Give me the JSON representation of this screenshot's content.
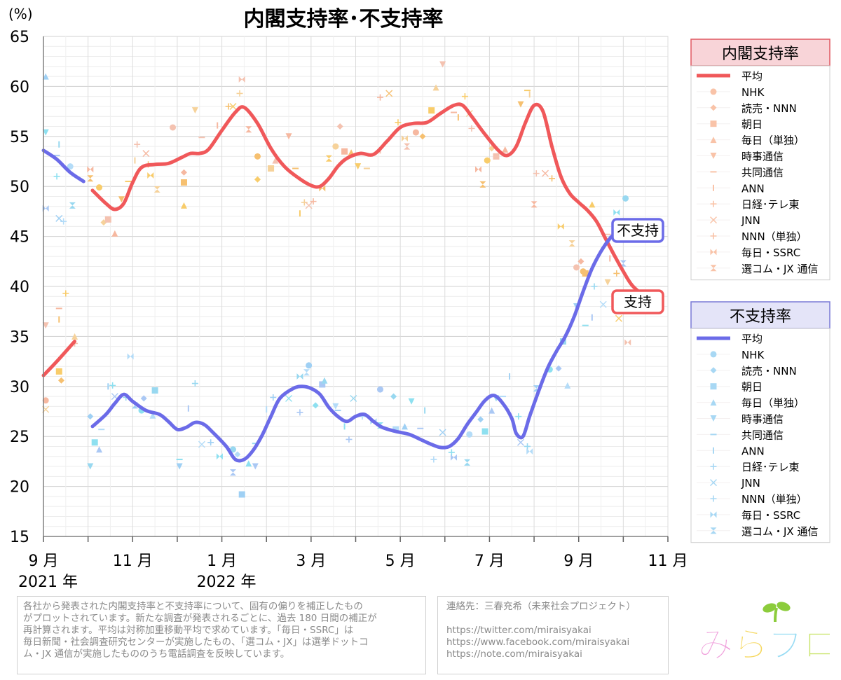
{
  "chart_data": {
    "type": "line",
    "title": "内閣支持率･不支持率",
    "ylabel": "(%)",
    "ylim": [
      15,
      65
    ],
    "yticks": [
      15,
      20,
      25,
      30,
      35,
      40,
      45,
      50,
      55,
      60,
      65
    ],
    "xlim_months": [
      0,
      14
    ],
    "xticks": [
      {
        "m": 0,
        "label": "9 月",
        "year": "2021 年"
      },
      {
        "m": 2,
        "label": "11 月",
        "year": ""
      },
      {
        "m": 4,
        "label": "1 月",
        "year": "2022 年"
      },
      {
        "m": 6,
        "label": "3 月",
        "year": ""
      },
      {
        "m": 8,
        "label": "5 月",
        "year": ""
      },
      {
        "m": 10,
        "label": "7 月",
        "year": ""
      },
      {
        "m": 12,
        "label": "9 月",
        "year": ""
      },
      {
        "m": 14,
        "label": "11 月",
        "year": ""
      }
    ],
    "grid": true,
    "series": [
      {
        "name": "支持率 平均",
        "color": "#f0585a",
        "segments": [
          [
            [
              0,
              31.1
            ],
            [
              0.3,
              32.5
            ],
            [
              0.7,
              34.5
            ]
          ],
          [
            [
              1.1,
              49.6
            ],
            [
              1.4,
              48.3
            ],
            [
              1.6,
              47.7
            ],
            [
              1.8,
              48.3
            ],
            [
              2.0,
              50.4
            ],
            [
              2.2,
              51.9
            ],
            [
              2.5,
              52.2
            ],
            [
              2.8,
              52.3
            ],
            [
              3.1,
              52.9
            ],
            [
              3.3,
              53.3
            ],
            [
              3.5,
              53.3
            ],
            [
              3.7,
              53.7
            ],
            [
              4.0,
              55.6
            ],
            [
              4.3,
              57.4
            ],
            [
              4.5,
              57.9
            ],
            [
              4.8,
              56.3
            ],
            [
              5.1,
              53.8
            ],
            [
              5.4,
              52.0
            ],
            [
              5.7,
              50.9
            ],
            [
              6.0,
              50.1
            ],
            [
              6.2,
              50.0
            ],
            [
              6.4,
              50.8
            ],
            [
              6.6,
              52.0
            ],
            [
              6.8,
              52.8
            ],
            [
              7.1,
              53.3
            ],
            [
              7.4,
              53.2
            ],
            [
              7.7,
              54.5
            ],
            [
              8.0,
              55.9
            ],
            [
              8.3,
              56.3
            ],
            [
              8.6,
              56.4
            ],
            [
              8.9,
              57.3
            ],
            [
              9.2,
              58.1
            ],
            [
              9.4,
              58.1
            ],
            [
              9.6,
              57.0
            ],
            [
              9.9,
              55.2
            ],
            [
              10.2,
              53.6
            ],
            [
              10.4,
              53.1
            ],
            [
              10.6,
              54.0
            ],
            [
              10.8,
              56.3
            ],
            [
              11.0,
              58.1
            ],
            [
              11.2,
              57.5
            ],
            [
              11.4,
              54.0
            ],
            [
              11.6,
              51.0
            ],
            [
              11.8,
              49.3
            ],
            [
              12.0,
              48.4
            ],
            [
              12.2,
              47.6
            ],
            [
              12.4,
              46.5
            ],
            [
              12.6,
              44.8
            ],
            [
              12.8,
              43.1
            ],
            [
              13.0,
              41.5
            ],
            [
              13.2,
              40.1
            ],
            [
              13.5,
              38.9
            ]
          ]
        ]
      },
      {
        "name": "不支持率 平均",
        "color": "#6b6be8",
        "segments": [
          [
            [
              0,
              53.6
            ],
            [
              0.3,
              52.7
            ],
            [
              0.6,
              51.4
            ],
            [
              0.9,
              50.5
            ]
          ],
          [
            [
              1.1,
              26.0
            ],
            [
              1.4,
              27.2
            ],
            [
              1.6,
              28.3
            ],
            [
              1.8,
              29.2
            ],
            [
              2.0,
              28.5
            ],
            [
              2.3,
              27.6
            ],
            [
              2.6,
              27.2
            ],
            [
              2.8,
              26.5
            ],
            [
              3.0,
              25.7
            ],
            [
              3.2,
              25.9
            ],
            [
              3.4,
              26.4
            ],
            [
              3.6,
              26.2
            ],
            [
              3.8,
              25.4
            ],
            [
              4.1,
              24.0
            ],
            [
              4.3,
              22.7
            ],
            [
              4.5,
              22.7
            ],
            [
              4.7,
              23.6
            ],
            [
              4.9,
              25.1
            ],
            [
              5.1,
              27.0
            ],
            [
              5.3,
              28.8
            ],
            [
              5.6,
              29.8
            ],
            [
              5.8,
              30.0
            ],
            [
              6.0,
              29.8
            ],
            [
              6.2,
              29.2
            ],
            [
              6.4,
              27.9
            ],
            [
              6.6,
              27.0
            ],
            [
              6.8,
              26.5
            ],
            [
              7.0,
              27.0
            ],
            [
              7.2,
              27.2
            ],
            [
              7.4,
              26.5
            ],
            [
              7.6,
              25.9
            ],
            [
              7.9,
              25.5
            ],
            [
              8.2,
              25.2
            ],
            [
              8.5,
              24.6
            ],
            [
              8.7,
              24.2
            ],
            [
              8.9,
              23.9
            ],
            [
              9.1,
              24.0
            ],
            [
              9.3,
              24.8
            ],
            [
              9.5,
              26.2
            ],
            [
              9.7,
              27.4
            ],
            [
              9.9,
              28.6
            ],
            [
              10.1,
              29.1
            ],
            [
              10.3,
              28.3
            ],
            [
              10.5,
              26.8
            ],
            [
              10.6,
              25.3
            ],
            [
              10.75,
              25.0
            ],
            [
              10.9,
              27.0
            ],
            [
              11.1,
              29.5
            ],
            [
              11.3,
              31.8
            ],
            [
              11.5,
              33.5
            ],
            [
              11.7,
              35.0
            ],
            [
              11.9,
              37.0
            ],
            [
              12.1,
              39.5
            ],
            [
              12.3,
              41.8
            ],
            [
              12.5,
              43.5
            ],
            [
              12.7,
              44.8
            ],
            [
              12.85,
              45.4
            ]
          ]
        ]
      }
    ],
    "scatter_support": [
      [
        0.05,
        28.6
      ],
      [
        0.4,
        30.6
      ],
      [
        0.35,
        31.5
      ],
      [
        0.7,
        35.0
      ],
      [
        0.05,
        36.1
      ],
      [
        0.35,
        37.8
      ],
      [
        0.35,
        36.7
      ],
      [
        0.5,
        39.3
      ],
      [
        0.05,
        27.7
      ],
      [
        0.7,
        34.3
      ],
      [
        1.05,
        51.7
      ],
      [
        1.05,
        50.8
      ],
      [
        1.25,
        49.9
      ],
      [
        1.35,
        46.4
      ],
      [
        1.45,
        46.7
      ],
      [
        1.6,
        45.3
      ],
      [
        1.75,
        48.7
      ],
      [
        1.9,
        50.5
      ],
      [
        2.05,
        52.6
      ],
      [
        2.1,
        54.2
      ],
      [
        2.3,
        53.3
      ],
      [
        2.35,
        52.2
      ],
      [
        2.4,
        51.1
      ],
      [
        2.55,
        49.7
      ],
      [
        2.9,
        55.9
      ],
      [
        3.15,
        51.4
      ],
      [
        3.15,
        50.4
      ],
      [
        3.15,
        48.1
      ],
      [
        3.4,
        57.6
      ],
      [
        3.55,
        54.9
      ],
      [
        3.9,
        56.1
      ],
      [
        4.15,
        58.0
      ],
      [
        4.25,
        58.0
      ],
      [
        4.4,
        59.3
      ],
      [
        4.45,
        60.7
      ],
      [
        4.6,
        55.7
      ],
      [
        4.8,
        53.0
      ],
      [
        4.8,
        50.7
      ],
      [
        5.1,
        51.8
      ],
      [
        5.2,
        52.6
      ],
      [
        5.5,
        55.0
      ],
      [
        5.65,
        51.8
      ],
      [
        5.75,
        47.3
      ],
      [
        5.85,
        48.4
      ],
      [
        5.95,
        48.1
      ],
      [
        6.05,
        48.5
      ],
      [
        6.25,
        49.8
      ],
      [
        6.4,
        52.8
      ],
      [
        6.55,
        54.0
      ],
      [
        6.65,
        56.0
      ],
      [
        6.75,
        53.5
      ],
      [
        6.9,
        53.4
      ],
      [
        7.05,
        52.0
      ],
      [
        7.25,
        51.8
      ],
      [
        7.55,
        53.6
      ],
      [
        7.55,
        58.9
      ],
      [
        7.75,
        59.3
      ],
      [
        7.95,
        56.4
      ],
      [
        8.1,
        54.8
      ],
      [
        8.15,
        54.0
      ],
      [
        8.35,
        55.4
      ],
      [
        8.5,
        55.0
      ],
      [
        8.7,
        57.6
      ],
      [
        8.8,
        59.9
      ],
      [
        8.95,
        62.2
      ],
      [
        9.2,
        57.4
      ],
      [
        9.3,
        56.9
      ],
      [
        9.45,
        59.0
      ],
      [
        9.55,
        57.3
      ],
      [
        9.6,
        55.8
      ],
      [
        9.75,
        51.7
      ],
      [
        9.85,
        50.2
      ],
      [
        9.95,
        52.6
      ],
      [
        10.05,
        53.8
      ],
      [
        10.15,
        53.0
      ],
      [
        10.35,
        53.7
      ],
      [
        10.7,
        58.2
      ],
      [
        10.85,
        59.6
      ],
      [
        10.9,
        59.2
      ],
      [
        11.05,
        51.3
      ],
      [
        11.25,
        51.3
      ],
      [
        11.4,
        50.8
      ],
      [
        11.6,
        46.0
      ],
      [
        11.85,
        44.3
      ],
      [
        11.95,
        41.9
      ],
      [
        12.05,
        42.5
      ],
      [
        12.15,
        41.3
      ],
      [
        12.3,
        48.2
      ],
      [
        12.65,
        40.4
      ],
      [
        12.65,
        45.2
      ],
      [
        12.7,
        42.8
      ],
      [
        12.85,
        41.3
      ],
      [
        12.9,
        36.8
      ],
      [
        13.0,
        38.5
      ],
      [
        13.1,
        34.4
      ],
      [
        11.0,
        48.2
      ],
      [
        12.1,
        41.5
      ]
    ],
    "scatter_disapprove": [
      [
        0.05,
        61.0
      ],
      [
        0.05,
        55.4
      ],
      [
        0.3,
        53.1
      ],
      [
        0.35,
        54.2
      ],
      [
        0.45,
        46.5
      ],
      [
        0.35,
        46.8
      ],
      [
        0.3,
        51.0
      ],
      [
        0.05,
        47.8
      ],
      [
        0.65,
        48.1
      ],
      [
        0.6,
        52.0
      ],
      [
        1.05,
        27.0
      ],
      [
        1.15,
        24.4
      ],
      [
        1.25,
        23.7
      ],
      [
        1.05,
        22.0
      ],
      [
        1.3,
        25.7
      ],
      [
        1.45,
        30.0
      ],
      [
        1.55,
        30.1
      ],
      [
        1.6,
        29.0
      ],
      [
        1.85,
        28.9
      ],
      [
        1.95,
        33.0
      ],
      [
        2.05,
        28.1
      ],
      [
        2.2,
        27.6
      ],
      [
        2.25,
        28.8
      ],
      [
        2.5,
        29.6
      ],
      [
        2.45,
        27.1
      ],
      [
        3.05,
        22.0
      ],
      [
        3.05,
        22.7
      ],
      [
        3.25,
        27.8
      ],
      [
        3.4,
        30.3
      ],
      [
        3.55,
        24.2
      ],
      [
        3.75,
        24.4
      ],
      [
        3.95,
        23.0
      ],
      [
        4.25,
        21.4
      ],
      [
        4.25,
        23.7
      ],
      [
        4.35,
        23.2
      ],
      [
        4.45,
        19.2
      ],
      [
        4.6,
        22.3
      ],
      [
        4.75,
        22.0
      ],
      [
        4.75,
        24.3
      ],
      [
        5.0,
        27.7
      ],
      [
        5.15,
        28.9
      ],
      [
        5.5,
        28.8
      ],
      [
        5.75,
        27.4
      ],
      [
        5.75,
        31.0
      ],
      [
        5.9,
        31.4
      ],
      [
        5.95,
        32.1
      ],
      [
        6.1,
        28.1
      ],
      [
        6.25,
        30.2
      ],
      [
        6.3,
        30.6
      ],
      [
        6.55,
        28.0
      ],
      [
        6.6,
        27.6
      ],
      [
        6.75,
        26.0
      ],
      [
        6.85,
        24.7
      ],
      [
        6.95,
        28.8
      ],
      [
        7.15,
        27.0
      ],
      [
        7.4,
        26.5
      ],
      [
        7.55,
        26.1
      ],
      [
        7.55,
        29.7
      ],
      [
        7.85,
        29.0
      ],
      [
        7.9,
        25.7
      ],
      [
        8.1,
        26.0
      ],
      [
        8.25,
        28.5
      ],
      [
        8.45,
        25.8
      ],
      [
        8.55,
        27.6
      ],
      [
        8.75,
        22.7
      ],
      [
        8.95,
        25.4
      ],
      [
        9.15,
        23.4
      ],
      [
        9.2,
        22.9
      ],
      [
        9.5,
        22.4
      ],
      [
        9.55,
        25.2
      ],
      [
        9.8,
        26.7
      ],
      [
        9.9,
        25.5
      ],
      [
        10.05,
        27.6
      ],
      [
        10.15,
        28.8
      ],
      [
        10.3,
        29.0
      ],
      [
        10.45,
        31.0
      ],
      [
        10.65,
        27.0
      ],
      [
        10.7,
        24.4
      ],
      [
        10.85,
        24.0
      ],
      [
        10.9,
        23.5
      ],
      [
        11.05,
        29.8
      ],
      [
        11.35,
        31.7
      ],
      [
        11.55,
        31.8
      ],
      [
        11.65,
        34.5
      ],
      [
        11.75,
        30.1
      ],
      [
        11.95,
        38.0
      ],
      [
        12.15,
        36.1
      ],
      [
        12.3,
        36.9
      ],
      [
        12.35,
        40.0
      ],
      [
        12.55,
        38.2
      ],
      [
        12.75,
        45.0
      ],
      [
        12.85,
        47.4
      ],
      [
        13.0,
        42.3
      ],
      [
        13.05,
        48.8
      ]
    ],
    "end_labels": {
      "disapprove": "不支持",
      "support": "支持"
    },
    "legends": [
      {
        "title": "内閣支持率",
        "title_bg": "#f8d4d8",
        "border": "#e05a62",
        "line_color": "#f0585a",
        "marker_color": "#f9c3a8",
        "entries": [
          "平均",
          "NHK",
          "読売・NNN",
          "朝日",
          "毎日（単独）",
          "時事通信",
          "共同通信",
          "ANN",
          "日経･テレ東",
          "JNN",
          "NNN（単独）",
          "毎日・SSRC",
          "選コム・JX 通信"
        ]
      },
      {
        "title": "不支持率",
        "title_bg": "#e4e4f8",
        "border": "#7a7ad6",
        "line_color": "#6b6be8",
        "marker_color": "#a8d8f4",
        "entries": [
          "平均",
          "NHK",
          "読売・NNN",
          "朝日",
          "毎日（単独）",
          "時事通信",
          "共同通信",
          "ANN",
          "日経･テレ東",
          "JNN",
          "NNN（単独）",
          "毎日・SSRC",
          "選コム・JX 通信"
        ]
      }
    ]
  },
  "notes": {
    "left_lines": [
      "各社から発表された内閣支持率と不支持率について、固有の偏りを補正したもの",
      "がプロットされています。新たな調査が発表されるごとに、過去 180 日間の補正が",
      "再計算されます。平均は対称加重移動平均で求めています。「毎日・SSRC」は",
      "毎日新聞・社会調査研究センターが実施したもの、「選コム・JX」は選挙ドットコ",
      "ム・JX 通信が実施したもののうち電話調査を反映しています。"
    ],
    "contact_label": "連絡先：三春充希（未来社会プロジェクト）",
    "links": [
      "https://twitter.com/miraisyakai",
      "https://www.facebook.com/miraisyakai",
      "https://note.com/miraisyakai"
    ]
  },
  "logo": {
    "text": "みらプロ",
    "colors": [
      "#f0a0dc",
      "#f6d860",
      "#98dcf4",
      "#c8e468"
    ],
    "sprout_color": "#8ccc3c"
  }
}
